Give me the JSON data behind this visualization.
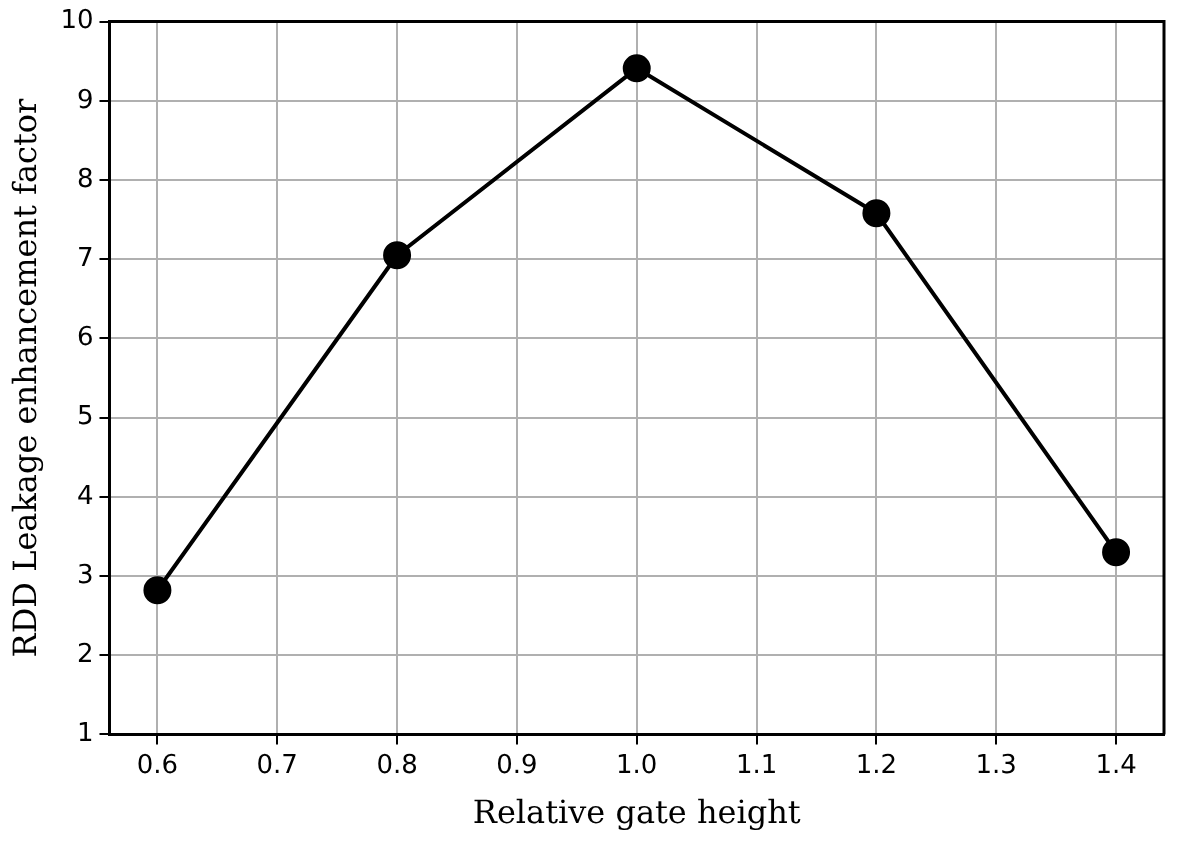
{
  "chart_data": {
    "type": "line",
    "xlabel": "Relative gate height",
    "ylabel": "RDD Leakage enhancement factor",
    "x": [
      0.6,
      0.8,
      1.0,
      1.2,
      1.4
    ],
    "series": [
      {
        "color": "#000000",
        "values": [
          2.82,
          7.05,
          9.41,
          7.58,
          3.3
        ]
      }
    ],
    "xlim": [
      0.56,
      1.44
    ],
    "ylim": [
      1,
      10
    ],
    "xticks": [
      0.6,
      0.7,
      0.8,
      0.9,
      {
        "value": 1,
        "label": "1.0"
      },
      1.1,
      1.2,
      1.3,
      1.4
    ],
    "yticks": [
      1,
      2,
      3,
      4,
      5,
      6,
      7,
      8,
      9,
      10
    ],
    "grid": true,
    "legend": false,
    "marker": "circle",
    "line_style": "solid"
  }
}
